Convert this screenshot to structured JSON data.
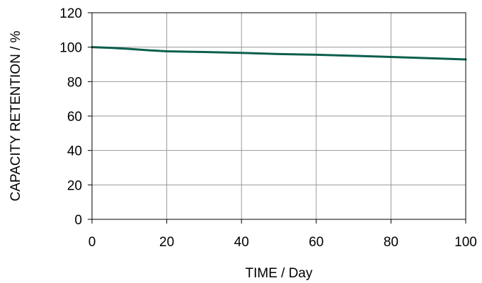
{
  "chart_data": {
    "type": "line",
    "xlabel": "TIME / Day",
    "ylabel": "CAPACITY RETENTION / %",
    "xlim": [
      0,
      100
    ],
    "ylim": [
      0,
      120
    ],
    "xticks": [
      0,
      20,
      40,
      60,
      80,
      100
    ],
    "yticks": [
      0,
      20,
      40,
      60,
      80,
      100,
      120
    ],
    "grid": true,
    "series": [
      {
        "color": "#0b5e4d",
        "x": [
          0,
          5,
          10,
          15,
          20,
          30,
          40,
          50,
          60,
          70,
          80,
          90,
          100
        ],
        "y": [
          100,
          99.6,
          99.0,
          98.2,
          97.6,
          97.2,
          96.7,
          96.0,
          95.6,
          95.0,
          94.3,
          93.6,
          92.9
        ]
      }
    ]
  }
}
